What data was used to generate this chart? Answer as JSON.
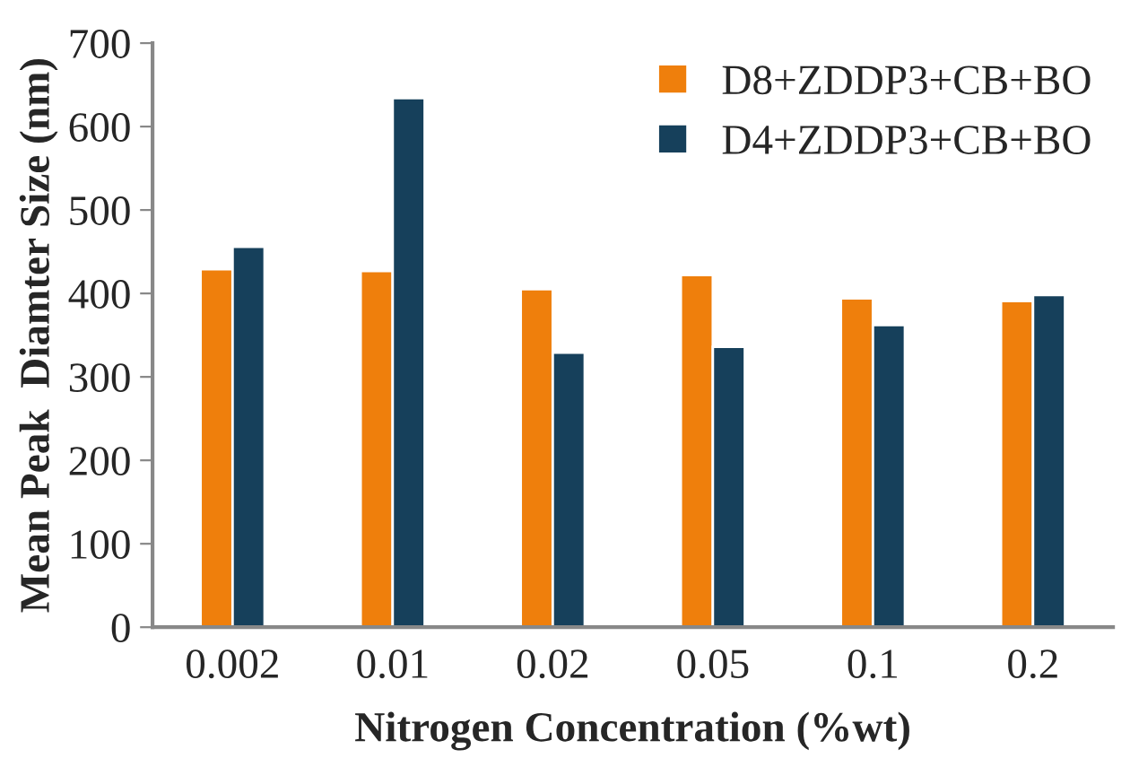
{
  "chart_data": {
    "type": "bar",
    "xlabel": "Nitrogen Concentration (%wt)",
    "ylabel": "Mean Peak  Diamter Size (nm)",
    "categories": [
      "0.002",
      "0.01",
      "0.02",
      "0.05",
      "0.1",
      "0.2"
    ],
    "series": [
      {
        "name": "D8+ZDDP3+CB+BO",
        "color": "#ef7f0c",
        "values": [
          429,
          427,
          405,
          422,
          394,
          391
        ]
      },
      {
        "name": "D4+ZDDP3+CB+BO",
        "color": "#16405b",
        "values": [
          456,
          634,
          329,
          336,
          362,
          398
        ]
      }
    ],
    "ylim": [
      0,
      700
    ],
    "yticks": [
      0,
      100,
      200,
      300,
      400,
      500,
      600,
      700
    ],
    "grid": false,
    "legend": "top right"
  }
}
